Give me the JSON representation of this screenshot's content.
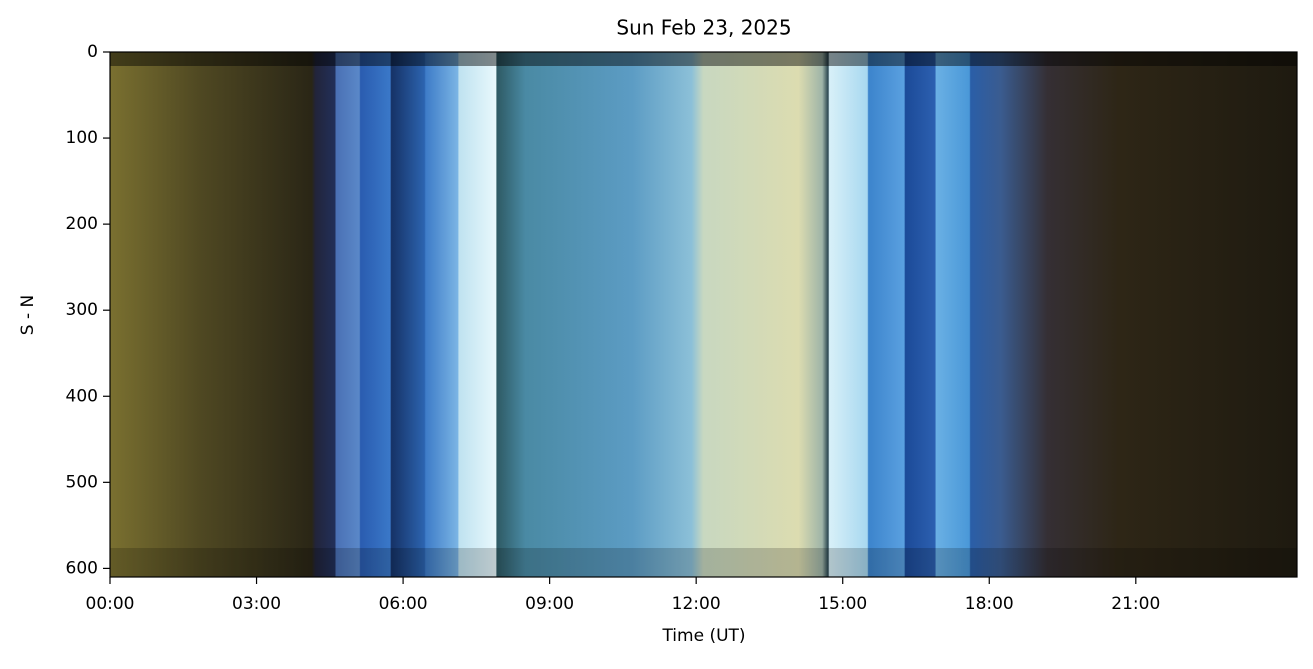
{
  "chart_data": {
    "type": "image",
    "title": "Sun Feb 23, 2025",
    "xlabel": "Time (UT)",
    "ylabel": "S - N",
    "xlim": [
      0,
      24.3
    ],
    "xticks": [
      {
        "value": 0,
        "label": "00:00"
      },
      {
        "value": 3,
        "label": "03:00"
      },
      {
        "value": 6,
        "label": "06:00"
      },
      {
        "value": 9,
        "label": "09:00"
      },
      {
        "value": 12,
        "label": "12:00"
      },
      {
        "value": 15,
        "label": "15:00"
      },
      {
        "value": 18,
        "label": "18:00"
      },
      {
        "value": 21,
        "label": "21:00"
      }
    ],
    "ylim": [
      0,
      610
    ],
    "y_inverted": true,
    "yticks": [
      0,
      100,
      200,
      300,
      400,
      500,
      600
    ]
  }
}
